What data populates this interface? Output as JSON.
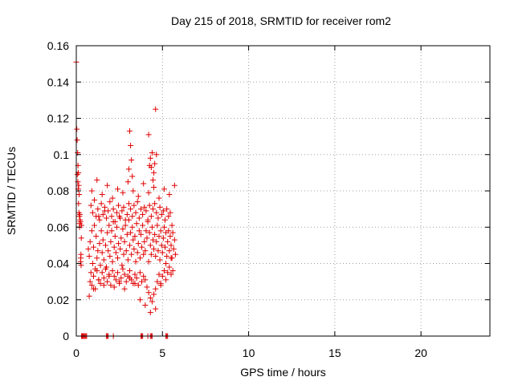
{
  "chart_data": {
    "type": "scatter",
    "title": "Day 215 of 2018, SRMTID for receiver rom2",
    "xlabel": "GPS time / hours",
    "ylabel": "SRMTID / TECUs",
    "xlim": [
      0,
      24
    ],
    "ylim": [
      0,
      0.16
    ],
    "xticks": [
      0,
      5,
      10,
      15,
      20
    ],
    "xtick_labels": [
      "0",
      "5",
      "10",
      "15",
      "20"
    ],
    "yticks": [
      0,
      0.02,
      0.04,
      0.06,
      0.08,
      0.1,
      0.12,
      0.14,
      0.16
    ],
    "ytick_labels": [
      "0",
      "0.02",
      "0.04",
      "0.06",
      "0.08",
      "0.1",
      "0.12",
      "0.14",
      "0.16"
    ],
    "grid": true,
    "marker": "+",
    "color": "#e00000",
    "series": [
      {
        "x": [
          0.0,
          0.03,
          0.05,
          0.08,
          0.1,
          0.12,
          0.14,
          0.16,
          0.18,
          0.2,
          0.22,
          0.24,
          0.26,
          0.28,
          0.3,
          0.06,
          0.09,
          0.11,
          0.13,
          0.15,
          0.19,
          0.21,
          0.25,
          0.27,
          0.29,
          0.7,
          0.75,
          0.8,
          0.85,
          0.9,
          0.95,
          1.0,
          1.05,
          1.1,
          1.15,
          1.2,
          1.25,
          1.3,
          1.35,
          1.4,
          1.45,
          1.5,
          1.55,
          1.6,
          1.65,
          1.7,
          1.75,
          1.8,
          1.85,
          1.9,
          1.95,
          2.0,
          2.05,
          2.1,
          2.15,
          2.2,
          2.25,
          2.3,
          2.35,
          2.4,
          2.45,
          2.5,
          2.55,
          2.6,
          2.65,
          2.7,
          2.75,
          2.8,
          2.85,
          2.9,
          2.95,
          3.0,
          3.05,
          3.1,
          3.15,
          3.2,
          3.25,
          3.3,
          3.35,
          3.4,
          3.45,
          3.5,
          3.55,
          3.6,
          3.65,
          3.7,
          3.75,
          3.8,
          3.85,
          3.9,
          3.95,
          4.0,
          4.05,
          4.1,
          4.15,
          4.2,
          4.25,
          4.3,
          4.35,
          4.4,
          4.45,
          4.5,
          4.55,
          4.6,
          4.65,
          4.7,
          4.75,
          4.8,
          4.85,
          4.9,
          4.95,
          5.0,
          5.05,
          5.1,
          5.15,
          5.2,
          5.25,
          5.3,
          5.35,
          5.4,
          5.45,
          5.5,
          5.55,
          5.6,
          5.65,
          5.7,
          5.75,
          0.8,
          0.9,
          1.0,
          1.1,
          1.2,
          1.3,
          1.4,
          1.5,
          1.6,
          1.7,
          1.8,
          1.9,
          2.0,
          2.1,
          2.2,
          2.3,
          2.4,
          2.5,
          2.6,
          2.7,
          2.8,
          2.9,
          3.0,
          3.1,
          3.2,
          3.3,
          3.4,
          3.5,
          3.6,
          3.7,
          3.8,
          3.9,
          4.0,
          4.1,
          4.2,
          4.3,
          4.4,
          4.5,
          4.6,
          4.7,
          4.8,
          4.9,
          5.0,
          5.1,
          5.2,
          5.3,
          5.4,
          5.5,
          5.6,
          0.85,
          0.95,
          1.05,
          1.15,
          1.25,
          1.35,
          1.45,
          1.55,
          1.65,
          1.75,
          1.85,
          1.95,
          2.05,
          2.15,
          2.25,
          2.35,
          2.45,
          2.55,
          2.65,
          2.75,
          2.85,
          2.95,
          3.05,
          3.15,
          3.25,
          3.35,
          3.45,
          3.55,
          3.65,
          3.75,
          3.85,
          3.95,
          4.05,
          4.15,
          4.25,
          4.35,
          4.45,
          4.55,
          4.65,
          4.75,
          4.85,
          4.95,
          5.05,
          5.15,
          5.25,
          5.35,
          5.45,
          5.55,
          0.75,
          1.0,
          1.3,
          1.6,
          1.9,
          2.2,
          2.5,
          2.8,
          3.1,
          3.4,
          3.7,
          4.0,
          4.3,
          4.6,
          4.9,
          5.2,
          5.5,
          0.9,
          1.2,
          1.5,
          1.8,
          2.1,
          2.4,
          2.7,
          3.0,
          3.3,
          3.6,
          3.9,
          4.2,
          4.5,
          4.8,
          5.1,
          5.4,
          5.7,
          3.1,
          3.15,
          3.2,
          3.05,
          3.25,
          4.2,
          4.3,
          4.35,
          4.4,
          4.5,
          4.55,
          4.6,
          4.65,
          4.45,
          4.25,
          0.3,
          0.35,
          0.4,
          0.45,
          0.5,
          0.55,
          0.6,
          1.75,
          1.8,
          1.85,
          2.15,
          3.75,
          3.8,
          3.85,
          4.15,
          4.3,
          4.35,
          4.4,
          5.2,
          5.25,
          5.3
        ],
        "y": [
          0.151,
          0.114,
          0.108,
          0.101,
          0.094,
          0.09,
          0.083,
          0.078,
          0.066,
          0.062,
          0.064,
          0.063,
          0.043,
          0.039,
          0.061,
          0.089,
          0.085,
          0.081,
          0.073,
          0.068,
          0.06,
          0.067,
          0.041,
          0.045,
          0.054,
          0.048,
          0.044,
          0.052,
          0.035,
          0.058,
          0.04,
          0.049,
          0.061,
          0.037,
          0.055,
          0.043,
          0.047,
          0.066,
          0.051,
          0.039,
          0.058,
          0.046,
          0.053,
          0.042,
          0.069,
          0.05,
          0.038,
          0.057,
          0.047,
          0.061,
          0.044,
          0.052,
          0.058,
          0.041,
          0.063,
          0.049,
          0.055,
          0.046,
          0.06,
          0.043,
          0.051,
          0.066,
          0.048,
          0.054,
          0.039,
          0.059,
          0.045,
          0.052,
          0.061,
          0.047,
          0.056,
          0.042,
          0.064,
          0.05,
          0.057,
          0.045,
          0.06,
          0.053,
          0.048,
          0.055,
          0.041,
          0.062,
          0.046,
          0.051,
          0.058,
          0.043,
          0.056,
          0.049,
          0.061,
          0.045,
          0.052,
          0.047,
          0.058,
          0.054,
          0.063,
          0.041,
          0.057,
          0.05,
          0.045,
          0.06,
          0.053,
          0.048,
          0.056,
          0.044,
          0.052,
          0.061,
          0.047,
          0.055,
          0.042,
          0.058,
          0.05,
          0.046,
          0.054,
          0.06,
          0.049,
          0.057,
          0.044,
          0.052,
          0.058,
          0.047,
          0.055,
          0.05,
          0.043,
          0.057,
          0.048,
          0.053,
          0.045,
          0.03,
          0.028,
          0.033,
          0.026,
          0.036,
          0.031,
          0.029,
          0.035,
          0.032,
          0.037,
          0.03,
          0.034,
          0.028,
          0.036,
          0.033,
          0.031,
          0.035,
          0.029,
          0.032,
          0.037,
          0.034,
          0.03,
          0.033,
          0.036,
          0.031,
          0.029,
          0.034,
          0.032,
          0.028,
          0.035,
          0.03,
          0.033,
          0.031,
          0.027,
          0.024,
          0.021,
          0.019,
          0.023,
          0.026,
          0.03,
          0.034,
          0.029,
          0.033,
          0.036,
          0.031,
          0.035,
          0.038,
          0.034,
          0.036,
          0.072,
          0.068,
          0.075,
          0.066,
          0.07,
          0.064,
          0.073,
          0.067,
          0.071,
          0.065,
          0.069,
          0.074,
          0.066,
          0.07,
          0.063,
          0.068,
          0.072,
          0.065,
          0.069,
          0.071,
          0.064,
          0.067,
          0.073,
          0.07,
          0.066,
          0.072,
          0.068,
          0.074,
          0.065,
          0.07,
          0.067,
          0.071,
          0.069,
          0.064,
          0.072,
          0.066,
          0.07,
          0.073,
          0.068,
          0.065,
          0.071,
          0.067,
          0.069,
          0.064,
          0.07,
          0.066,
          0.068,
          0.061,
          0.022,
          0.026,
          0.031,
          0.028,
          0.033,
          0.027,
          0.03,
          0.026,
          0.032,
          0.029,
          0.02,
          0.017,
          0.013,
          0.015,
          0.028,
          0.04,
          0.043,
          0.08,
          0.086,
          0.078,
          0.083,
          0.076,
          0.081,
          0.079,
          0.085,
          0.08,
          0.077,
          0.084,
          0.079,
          0.082,
          0.076,
          0.081,
          0.078,
          0.083,
          0.113,
          0.105,
          0.097,
          0.092,
          0.088,
          0.111,
          0.098,
          0.093,
          0.101,
          0.09,
          0.095,
          0.125,
          0.1,
          0.086,
          0.094,
          0.0,
          0.0,
          0.0,
          0.0,
          0.0,
          0.0,
          0.0,
          0.0,
          0.0,
          0.0,
          0.0,
          0.0,
          0.0,
          0.0,
          0.0,
          0.0,
          0.0,
          0.0,
          0.0,
          0.0,
          0.0
        ]
      }
    ]
  }
}
